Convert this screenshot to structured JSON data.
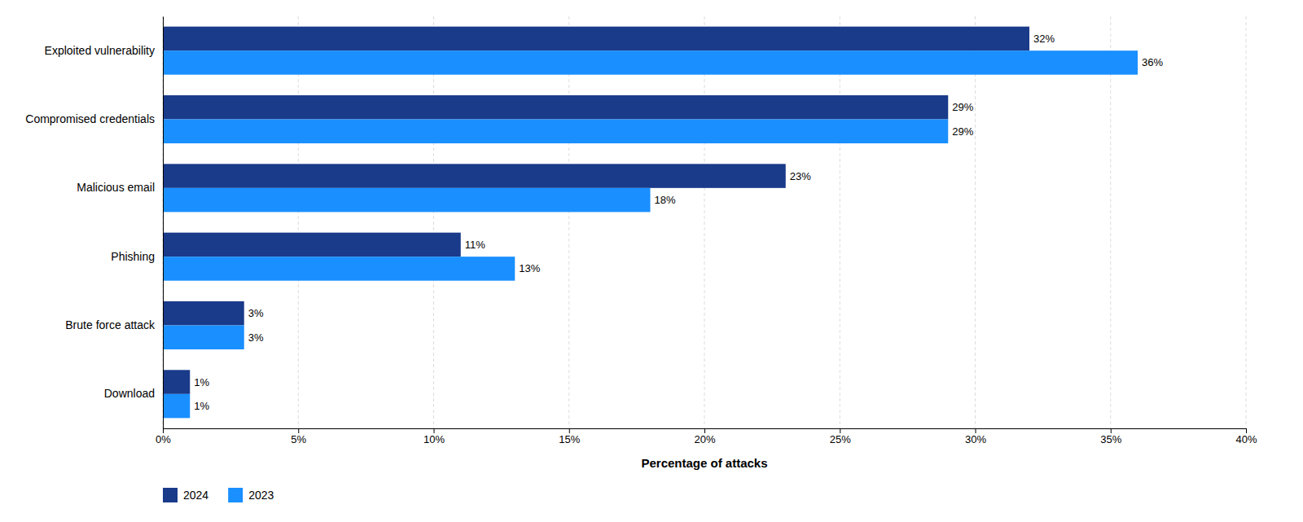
{
  "chart_data": {
    "type": "bar",
    "orientation": "horizontal",
    "categories": [
      "Exploited vulnerability",
      "Compromised credentials",
      "Malicious email",
      "Phishing",
      "Brute force attack",
      "Download"
    ],
    "series": [
      {
        "name": "2024",
        "color": "#1a3a8a",
        "values": [
          32,
          29,
          23,
          11,
          3,
          1
        ],
        "value_labels": [
          "32%",
          "29%",
          "23%",
          "11%",
          "3%",
          "1%"
        ]
      },
      {
        "name": "2023",
        "color": "#1a8fff",
        "values": [
          36,
          29,
          18,
          13,
          3,
          1
        ],
        "value_labels": [
          "36%",
          "29%",
          "18%",
          "13%",
          "3%",
          "1%"
        ]
      }
    ],
    "xlabel": "Percentage of attacks",
    "xlim": [
      0,
      40
    ],
    "xticks": [
      {
        "value": 0,
        "label": "0%"
      },
      {
        "value": 5,
        "label": "5%"
      },
      {
        "value": 10,
        "label": "10%"
      },
      {
        "value": 15,
        "label": "15%"
      },
      {
        "value": 20,
        "label": "20%"
      },
      {
        "value": 25,
        "label": "25%"
      },
      {
        "value": 30,
        "label": "30%"
      },
      {
        "value": 35,
        "label": "35%"
      },
      {
        "value": 40,
        "label": "40%"
      }
    ],
    "grid": true,
    "data_labels": true,
    "legend": "lower left"
  }
}
